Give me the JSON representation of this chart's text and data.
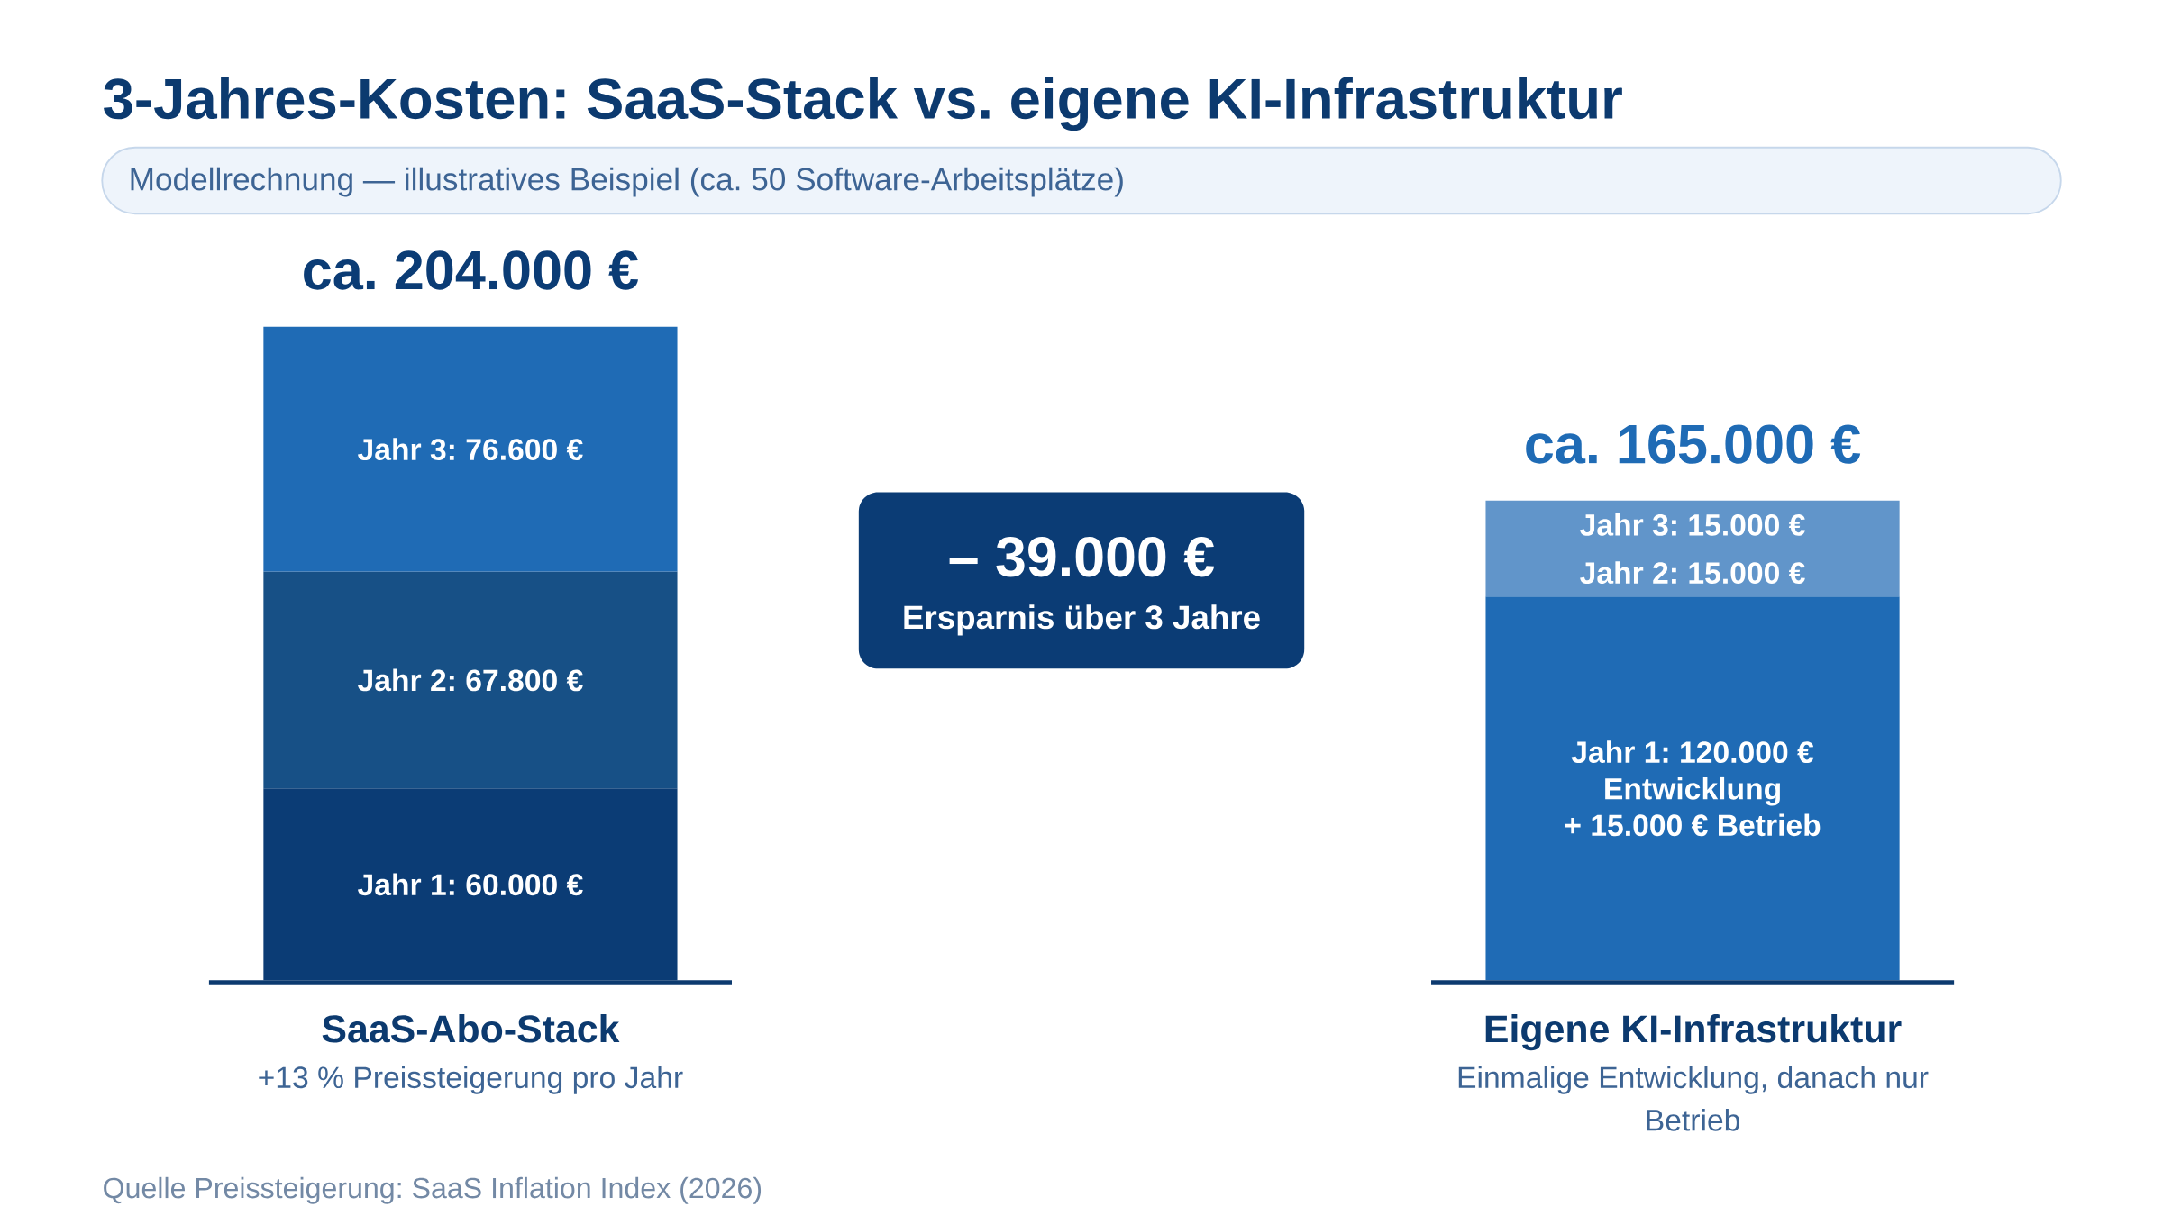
{
  "chart_data": {
    "type": "bar",
    "stacked": true,
    "title": "3-Jahres-Kosten: SaaS-Stack vs. eigene KI-Infrastruktur",
    "subtitle": "Modellrechnung — illustratives Beispiel (ca. 50 Software-Arbeitsplätze)",
    "categories": [
      "SaaS-Abo-Stack",
      "Eigene KI-Infrastruktur"
    ],
    "series": [
      {
        "colors": [
          "#0b3c75",
          "#1f6bb5"
        ],
        "values": [
          60000,
          120000
        ],
        "value_labels": [
          "Jahr 1: 60.000 €",
          "Jahr 1: 120.000 € Entwicklung + 15.000 € Betrieb"
        ]
      },
      {
        "colors": [
          "#175086",
          "#6195ca"
        ],
        "values": [
          67800,
          15000
        ],
        "value_labels": [
          "Jahr 2: 67.800 €",
          "Jahr 2: 15.000 €"
        ]
      },
      {
        "colors": [
          "#1f6bb5",
          "#6195ca"
        ],
        "values": [
          76600,
          15000
        ],
        "value_labels": [
          "Jahr 3: 76.600 €",
          "Jahr 3: 15.000 €"
        ]
      }
    ],
    "annotations": [
      {
        "text": "ca. 204.000 €",
        "x": "SaaS-Abo-Stack",
        "y": 204400
      },
      {
        "text": "ca. 165.000 €",
        "x": "Eigene KI-Infrastruktur",
        "y": 150000
      },
      "– 39.000 €",
      "Ersparnis über 3 Jahre",
      "+13 % Preissteigerung pro Jahr",
      "Einmalige Entwicklung, danach nur Betrieb",
      "Quelle Preissteigerung: SaaS Inflation Index (2026)"
    ]
  }
}
